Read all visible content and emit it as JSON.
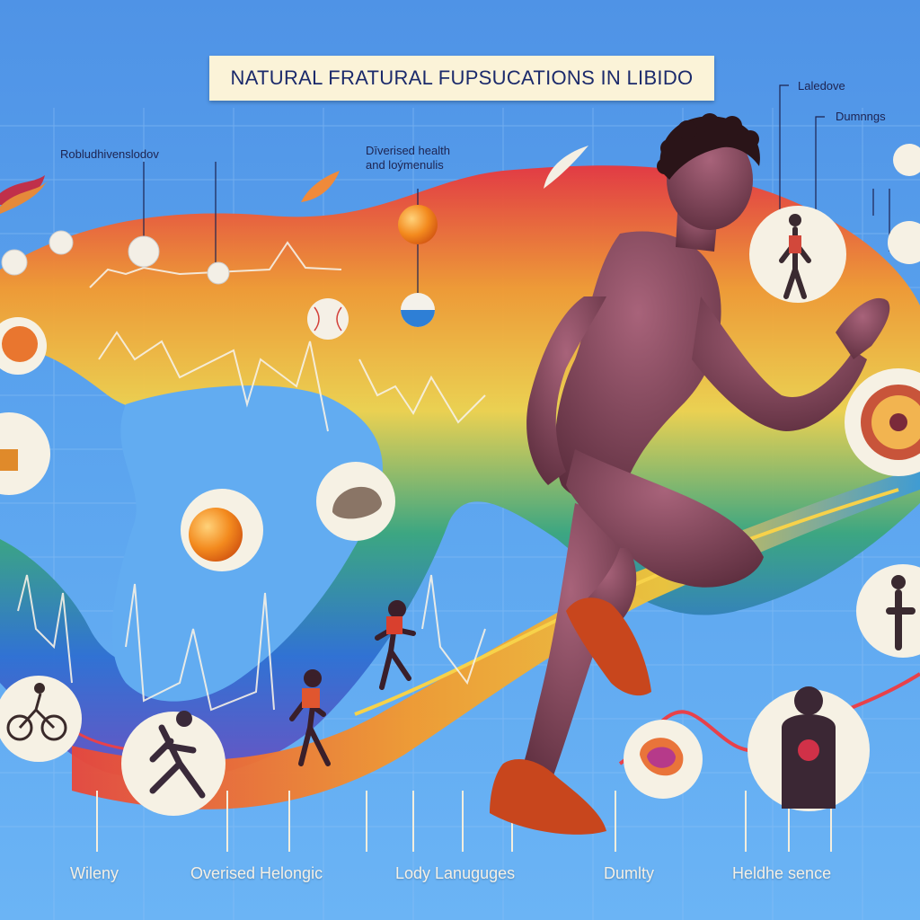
{
  "title": "NATURAL FRATURAL FUPSUCATIONS IN LIBIDO",
  "top_labels": {
    "left": "Robludhivenslodov",
    "center_line1": "Dīverised health",
    "center_line2": "and loýmenulis",
    "right_top": "Laledove",
    "right_second": "Dumnngs"
  },
  "bottom_labels": [
    "Wileny",
    "Overised Helongic",
    "Lody Lanuguges",
    "Dumlty",
    "Heldhe sence"
  ]
}
